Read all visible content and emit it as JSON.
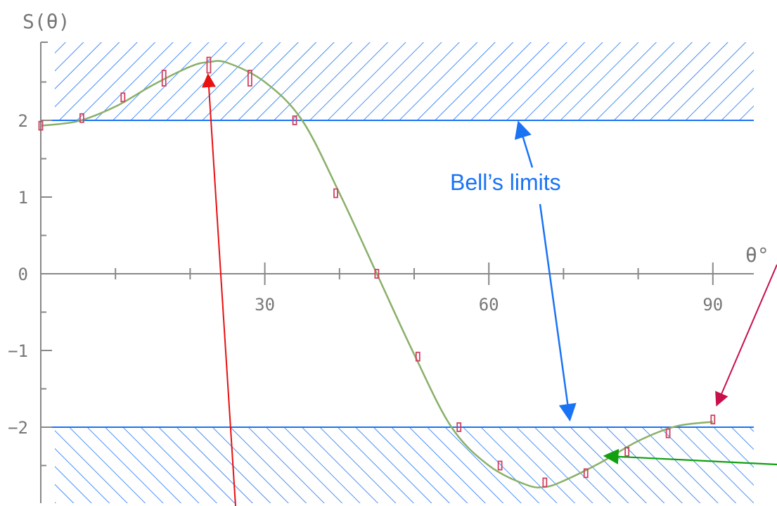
{
  "chart_data": {
    "type": "line",
    "title": "",
    "ylabel": "S(θ)",
    "xlabel": "θ°",
    "xlim": [
      0,
      95
    ],
    "ylim": [
      -2.9,
      2.8
    ],
    "x_ticks": [
      30,
      60,
      90
    ],
    "y_ticks": [
      2,
      1,
      0,
      -1,
      -2
    ],
    "y_tick_labels": [
      "2",
      "1",
      "0",
      "−1",
      "−2"
    ],
    "x_tick_labels": [
      "30",
      "60",
      "90"
    ],
    "bell_limits": [
      2,
      -2
    ],
    "annotation": "Bell’s limits",
    "series": [
      {
        "kind": "theory_curve",
        "x": [
          0,
          5,
          10,
          15,
          20,
          22.5,
          25,
          30,
          35,
          40,
          45,
          50,
          55,
          60,
          65,
          67.5,
          70,
          75,
          80,
          85,
          90
        ],
        "y": [
          1.93,
          1.99,
          2.18,
          2.46,
          2.7,
          2.76,
          2.75,
          2.5,
          2.0,
          1.05,
          0.0,
          -1.05,
          -2.0,
          -2.5,
          -2.75,
          -2.78,
          -2.7,
          -2.46,
          -2.18,
          -1.99,
          -1.93
        ]
      },
      {
        "kind": "measurements",
        "x": [
          0,
          5.5,
          11,
          16.5,
          22.5,
          28,
          34,
          39.5,
          45,
          50.5,
          56,
          61.5,
          67.5,
          73,
          78.5,
          84,
          90
        ],
        "y": [
          1.93,
          2.03,
          2.3,
          2.55,
          2.72,
          2.55,
          2.0,
          1.05,
          0.0,
          -1.08,
          -2.0,
          -2.5,
          -2.72,
          -2.6,
          -2.32,
          -2.08,
          -1.9
        ]
      }
    ],
    "colors": {
      "curve": "#8ab06a",
      "measurement": "#d04060",
      "bell_limit": "#1a73f5",
      "hatch": "#1a73f5",
      "axis": "#888888",
      "arrow_red": "#e81010",
      "arrow_magenta": "#c8104a",
      "arrow_green": "#10a010",
      "arrow_blue": "#1a73f5"
    }
  }
}
